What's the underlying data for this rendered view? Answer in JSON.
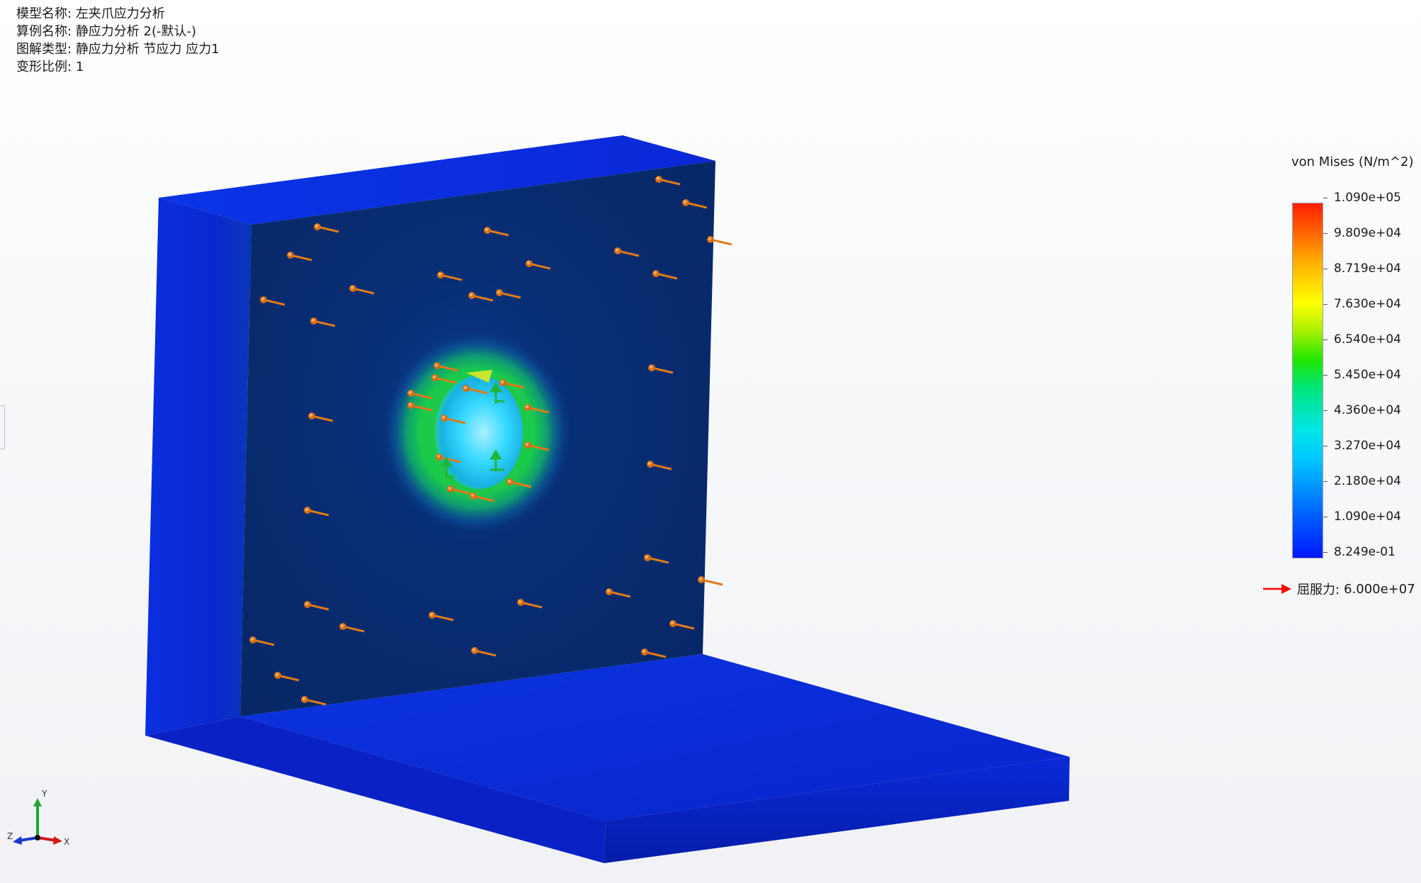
{
  "info": {
    "model_label": "模型名称:",
    "model_value": "左夹爪应力分析",
    "study_label": "算例名称:",
    "study_value": "静应力分析 2(-默认-)",
    "plot_label": "图解类型:",
    "plot_value": "静应力分析 节应力 应力1",
    "scale_label": "变形比例:",
    "scale_value": "1"
  },
  "legend": {
    "title": "von Mises (N/m^2)",
    "ticks": [
      "1.090e+05",
      "9.809e+04",
      "8.719e+04",
      "7.630e+04",
      "6.540e+04",
      "5.450e+04",
      "4.360e+04",
      "3.270e+04",
      "2.180e+04",
      "1.090e+04",
      "8.249e-01"
    ],
    "yield_label": "屈服力:",
    "yield_value": "6.000e+07",
    "yield_arrow_color": "#ff0000"
  },
  "triad": {
    "x": "X",
    "y": "Y",
    "z": "Z"
  },
  "colors": {
    "accent_blue": "#0a2bd6",
    "face_dark": "#082a6a",
    "arrow_orange": "#e07a1a",
    "arrow_green": "#21b43a"
  },
  "icons": {
    "load_arrow": "pressure-arrow-icon",
    "fixture_arrow": "fixture-arrow-icon"
  }
}
